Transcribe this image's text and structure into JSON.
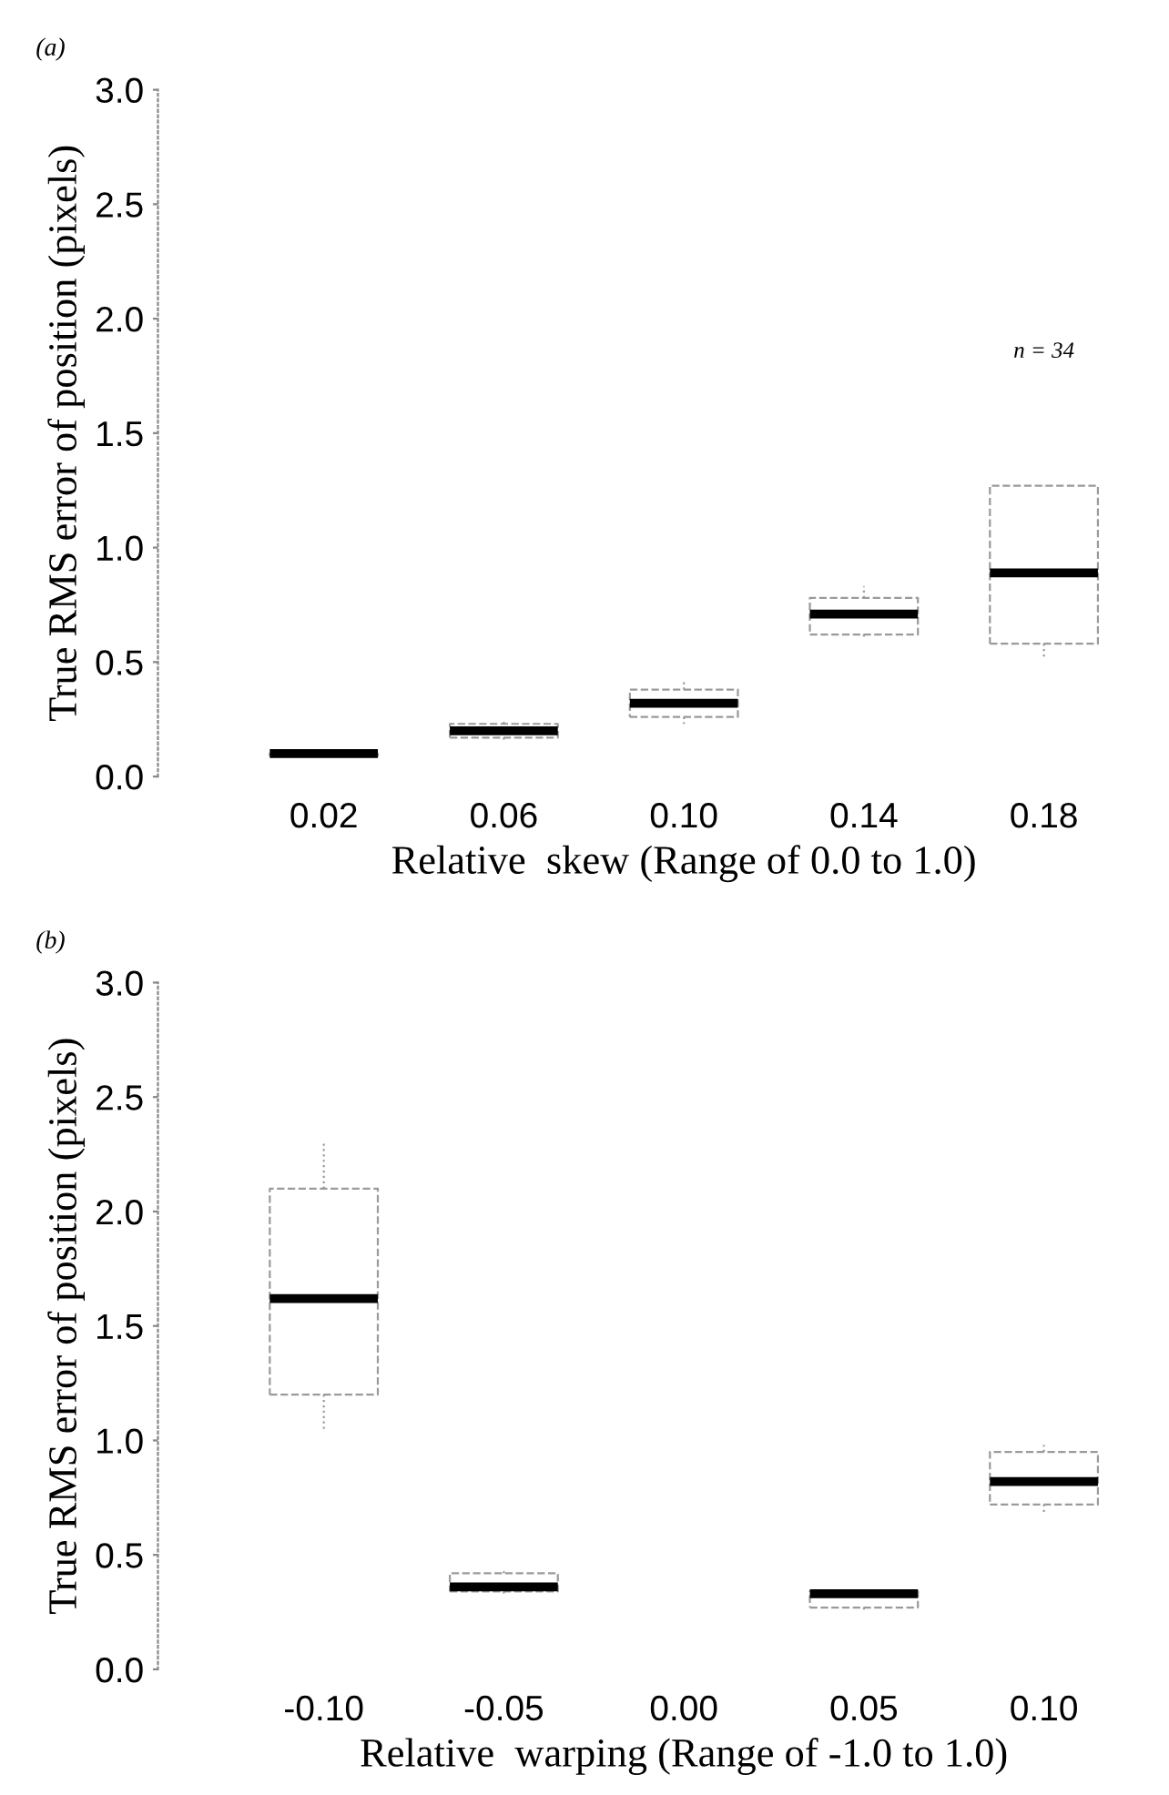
{
  "chart_data": [
    {
      "type": "box",
      "title": "(a)",
      "xlabel": "Relative  skew (Range of 0.0 to 1.0)",
      "ylabel": "True RMS error of position (pixels)",
      "categories": [
        "0.02",
        "0.06",
        "0.10",
        "0.14",
        "0.18"
      ],
      "boxes": [
        {
          "low": 0.09,
          "q1": 0.09,
          "median": 0.1,
          "q3": 0.1,
          "high": 0.11
        },
        {
          "low": 0.15,
          "q1": 0.17,
          "median": 0.2,
          "q3": 0.23,
          "high": 0.25
        },
        {
          "low": 0.23,
          "q1": 0.26,
          "median": 0.32,
          "q3": 0.38,
          "high": 0.42
        },
        {
          "low": 0.6,
          "q1": 0.62,
          "median": 0.71,
          "q3": 0.78,
          "high": 0.83
        },
        {
          "low": 0.52,
          "q1": 0.58,
          "median": 0.89,
          "q3": 1.27,
          "high": 1.27
        }
      ],
      "color": "#9a9a9a",
      "ylim": [
        0,
        3.0
      ],
      "yticks": [
        {
          "value": 0,
          "label": "0.0"
        },
        0.5,
        {
          "value": 1,
          "label": "1.0"
        },
        1.5,
        {
          "value": 2,
          "label": "2.0"
        },
        2.5,
        {
          "value": 3,
          "label": "3.0"
        }
      ],
      "grid": false,
      "annotations": [
        "n = 34"
      ]
    },
    {
      "type": "box",
      "title": "(b)",
      "xlabel": "Relative  warping (Range of -1.0 to 1.0)",
      "ylabel": "True RMS error of position (pixels)",
      "categories": [
        "-0.10",
        "-0.05",
        "0.00",
        "0.05",
        "0.10"
      ],
      "boxes": [
        {
          "low": 1.05,
          "q1": 1.2,
          "median": 1.62,
          "q3": 2.1,
          "high": 2.3
        },
        {
          "low": 0.32,
          "q1": 0.34,
          "median": 0.36,
          "q3": 0.42,
          "high": 0.43
        },
        null,
        {
          "low": 0.25,
          "q1": 0.27,
          "median": 0.33,
          "q3": 0.34,
          "high": 0.35
        },
        {
          "low": 0.68,
          "q1": 0.72,
          "median": 0.82,
          "q3": 0.95,
          "high": 0.98
        }
      ],
      "color": "#9a9a9a",
      "ylim": [
        0,
        3.0
      ],
      "yticks": [
        {
          "value": 0,
          "label": "0.0"
        },
        0.5,
        {
          "value": 1,
          "label": "1.0"
        },
        1.5,
        {
          "value": 2,
          "label": "2.0"
        },
        2.5,
        {
          "value": 3,
          "label": "3.0"
        }
      ],
      "grid": false
    }
  ]
}
